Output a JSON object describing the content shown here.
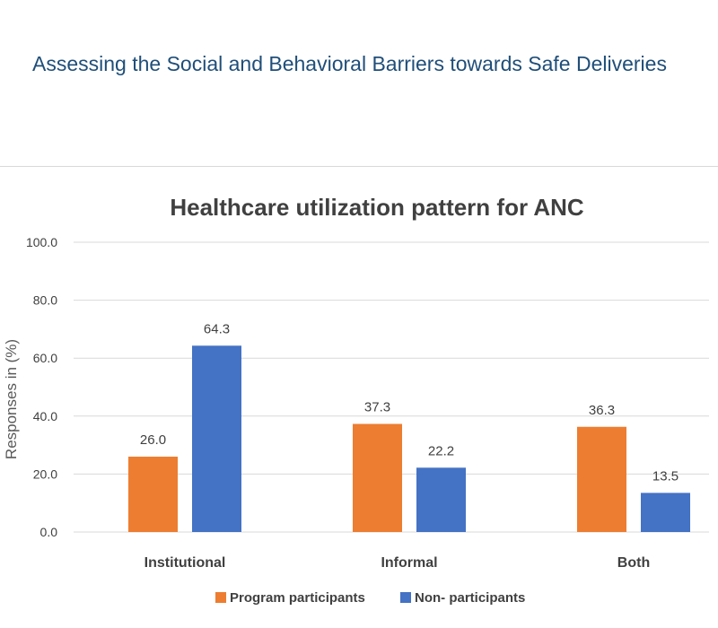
{
  "header": {
    "title": "Assessing the Social and Behavioral Barriers towards Safe Deliveries"
  },
  "colors": {
    "program": "#ed7d31",
    "non_participants": "#4472c4",
    "header_text": "#1f4e79",
    "grid": "#d9d9d9"
  },
  "chart_data": {
    "type": "bar",
    "title": "Healthcare utilization pattern for ANC",
    "xlabel": "",
    "ylabel": "Responses in (%)",
    "ylim": [
      0,
      100
    ],
    "yticks": [
      "0.0",
      "20.0",
      "40.0",
      "60.0",
      "80.0",
      "100.0"
    ],
    "categories": [
      "Institutional",
      "Informal",
      "Both"
    ],
    "series": [
      {
        "name": "Program participants",
        "values": [
          26.0,
          37.3,
          36.3
        ],
        "labels": [
          "26.0",
          "37.3",
          "36.3"
        ]
      },
      {
        "name": "Non- participants",
        "values": [
          64.3,
          22.2,
          13.5
        ],
        "labels": [
          "64.3",
          "22.2",
          "13.5"
        ]
      }
    ],
    "grid": true,
    "legend": "bottom"
  }
}
